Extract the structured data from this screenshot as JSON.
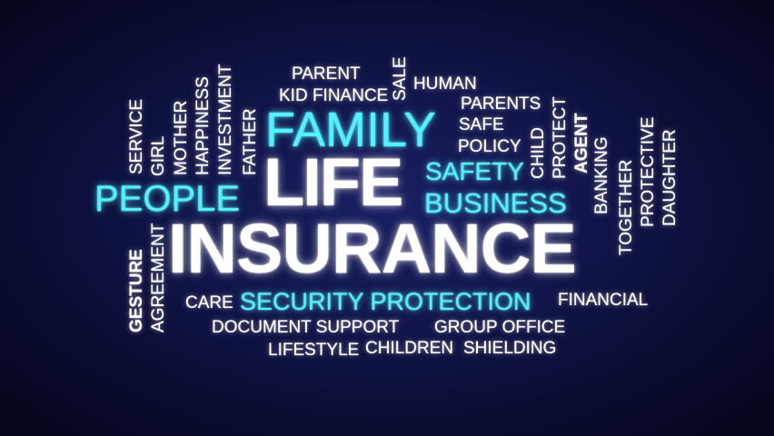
{
  "words": {
    "insurance": "INSURANCE",
    "life": "LIFE",
    "family": "FAMILY",
    "people": "PEOPLE",
    "safety": "SAFETY",
    "business": "BUSINESS",
    "security_protection": "SECURITY PROTECTION",
    "parent": "PARENT",
    "kid_finance": "KID FINANCE",
    "sale": "SALE",
    "human": "HUMAN",
    "parents": "PARENTS",
    "safe": "SAFE",
    "policy": "POLICY",
    "child": "CHILD",
    "protect": "PROTECT",
    "agent": "AGENT",
    "banking": "BANKING",
    "together": "TOGETHER",
    "protective": "PROTECTIVE",
    "daughter": "DAUGHTER",
    "service": "SERVICE",
    "girl": "GIRL",
    "mother": "MOTHER",
    "happiness": "HAPPINESS",
    "investment": "INVESTMENT",
    "father": "FATHER",
    "gesture": "GESTURE",
    "agreement": "AGREEMENT",
    "care": "CARE",
    "financial": "FINANCIAL",
    "document_support": "DOCUMENT SUPPORT",
    "group_office": "GROUP OFFICE",
    "lifestyle": "LIFESTYLE",
    "children": "CHILDREN",
    "shielding": "SHIELDING"
  },
  "colors": {
    "background_center": "#1a1f62",
    "background_edge": "#05061a",
    "word_white": "#ffffff",
    "word_cyan": "#4ff2ff"
  }
}
